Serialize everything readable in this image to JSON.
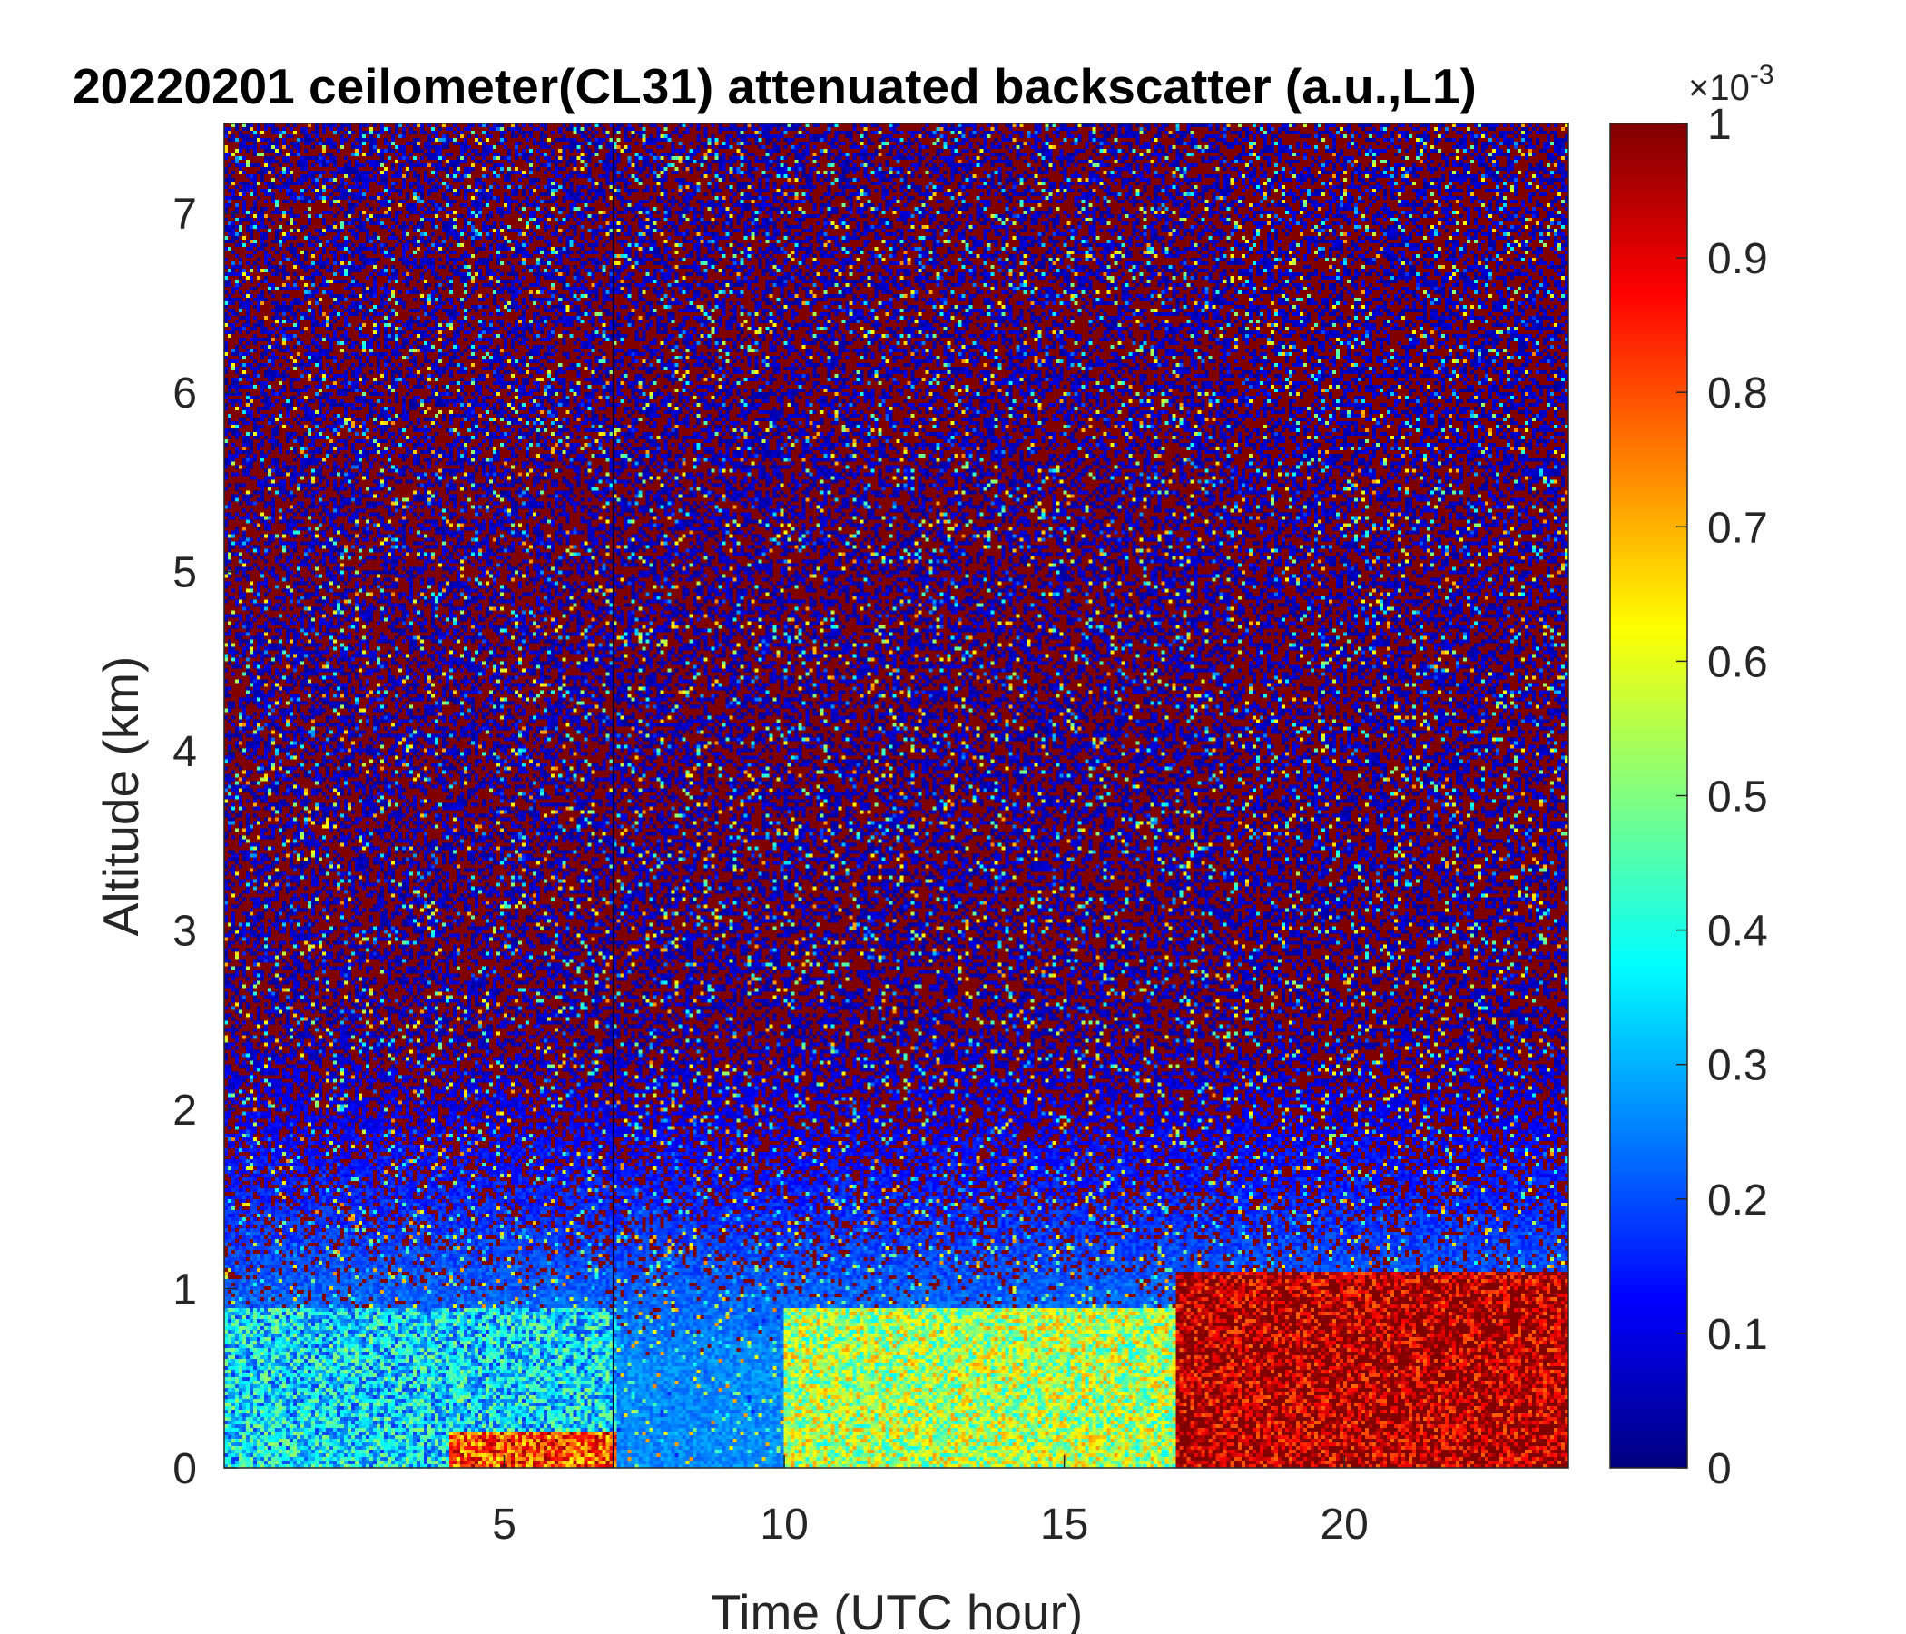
{
  "chart_data": {
    "type": "heatmap",
    "title": "20220201 ceilometer(CL31) attenuated backscatter (a.u.,L1)",
    "xlabel": "Time (UTC hour)",
    "ylabel": "Altitude (km)",
    "xlim": [
      0,
      24
    ],
    "ylim": [
      0,
      7.5
    ],
    "x_ticks": [
      5,
      10,
      15,
      20
    ],
    "y_ticks": [
      0,
      1,
      2,
      3,
      4,
      5,
      6,
      7
    ],
    "colorbar": {
      "colormap": "jet",
      "clim": [
        0,
        1
      ],
      "scale_exponent_label": "×10",
      "scale_exponent_power": "-3",
      "ticks": [
        "0",
        "0.1",
        "0.2",
        "0.3",
        "0.4",
        "0.5",
        "0.6",
        "0.7",
        "0.8",
        "0.9",
        "1"
      ]
    },
    "description_values": {
      "noise_region": {
        "altitude_km": [
          1.2,
          7.5
        ],
        "value": "random 0 or 1 (saturated noise)"
      },
      "boundary_layer": [
        {
          "time_h": [
            0,
            7
          ],
          "altitude_km": [
            0,
            0.9
          ],
          "value": 0.35
        },
        {
          "time_h": [
            4,
            7
          ],
          "altitude_km": [
            0,
            0.2
          ],
          "value": 0.8
        },
        {
          "time_h": [
            10,
            17
          ],
          "altitude_km": [
            0,
            0.9
          ],
          "value": 0.55
        },
        {
          "time_h": [
            17,
            24
          ],
          "altitude_km": [
            0,
            1.1
          ],
          "value": 0.95
        }
      ],
      "data_gap_line_time_h": 6.95
    }
  }
}
